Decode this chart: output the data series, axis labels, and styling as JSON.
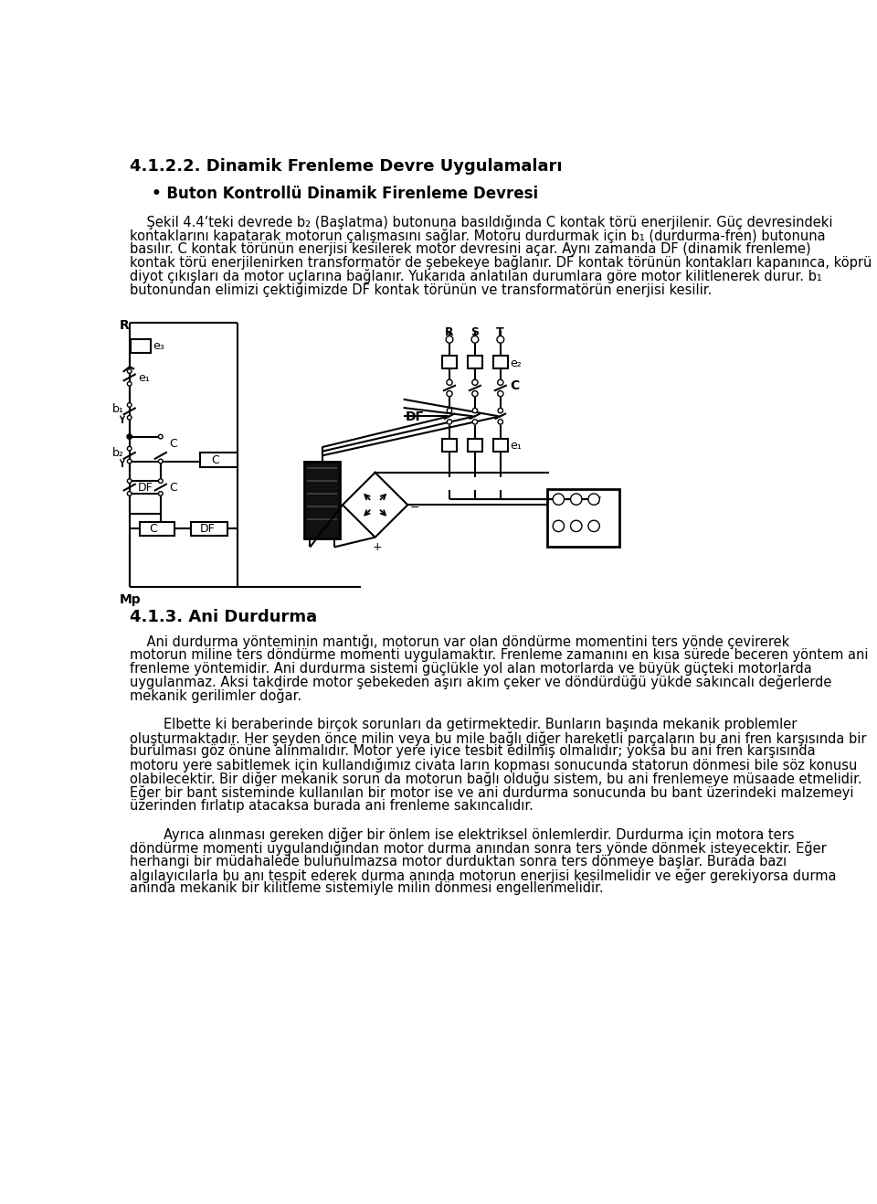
{
  "title": "4.1.2.2. Dinamik Frenleme Devre Uygulamaları",
  "subtitle": "• Buton Kontrollü Dinamik Firenleme Devresi",
  "p1_lines": [
    "    Şekil 4.4’teki devrede b₂ (Başlatma) butonuna basıldığında C kontak törü enerjilenir. Güç devresindeki",
    "kontaklarını kapatarak motorun çalışmasını sağlar. Motoru durdurmak için b₁ (durdurma-fren) butonuna",
    "basılır. C kontak törünün enerjisi kesilerek motor devresini açar. Aynı zamanda DF (dinamik frenleme)",
    "kontak törü enerjilenirken transformatör de şebekeye bağlanır. DF kontak törünün kontakları kapanınca, köprü",
    "diyot çıkışları da motor uçlarına bağlanır. Yukarıda anlatılan durumlara göre motor kilitlenerek durur. b₁",
    "butonundan elimizi çektiğimizde DF kontak törünün ve transformatörün enerjisi kesilir."
  ],
  "section_title": "4.1.3. Ani Durdurma",
  "p2_lines": [
    "    Ani durdurma yönteminin mantığı, motorun var olan döndürme momentini ters yönde çevirerek",
    "motorun miline ters döndürme momenti uygulamaktır. Frenleme zamanını en kısa sürede beceren yöntem ani",
    "frenleme yöntemidir. Ani durdurma sistemi güçlükle yol alan motorlarda ve büyük güçteki motorlarda",
    "uygulanmaz. Aksi takdirde motor şebekeden aşırı akım çeker ve döndürdüğü yükde sakıncalı değerlerde",
    "mekanik gerilimler doğar."
  ],
  "p3_lines": [
    "        Elbette ki beraberinde birçok sorunları da getirmektedir. Bunların başında mekanik problemler",
    "oluşturmaktadır. Her şeyden önce milin veya bu mile bağlı diğer hareketli parçaların bu ani fren karşısında bir",
    "burulması göz önüne alınmalıdır. Motor yere iyice tesbit edilmiş olmalıdır; yoksa bu ani fren karşısında",
    "motoru yere sabitlemek için kullandığımız civata ların kopması sonucunda statorun dönmesi bile söz konusu",
    "olabilecektir. Bir diğer mekanik sorun da motorun bağlı olduğu sistem, bu ani frenlemeye müsaade etmelidir.",
    "Eğer bir bant sisteminde kullanılan bir motor ise ve ani durdurma sonucunda bu bant üzerindeki malzemeyi",
    "üzerinden fırlatıp atacaksa burada ani frenleme sakıncalıdır."
  ],
  "p4_lines": [
    "        Ayrıca alınması gereken diğer bir önlem ise elektriksel önlemlerdir. Durdurma için motora ters",
    "döndürme momenti uygulandığından motor durma anından sonra ters yönde dönmek isteyecektir. Eğer",
    "herhangi bir müdahalede bulunulmazsa motor durduktan sonra ters dönmeye başlar. Burada bazı",
    "algılayıcılarla bu anı tespit ederek durma anında motorun enerjisi kesilmelidir ve eğer gerekiyorsa durma",
    "anında mekanik bir kilitleme sistemiyle milin dönmesi engellenmelidir."
  ],
  "bg_color": "#ffffff",
  "text_color": "#000000"
}
